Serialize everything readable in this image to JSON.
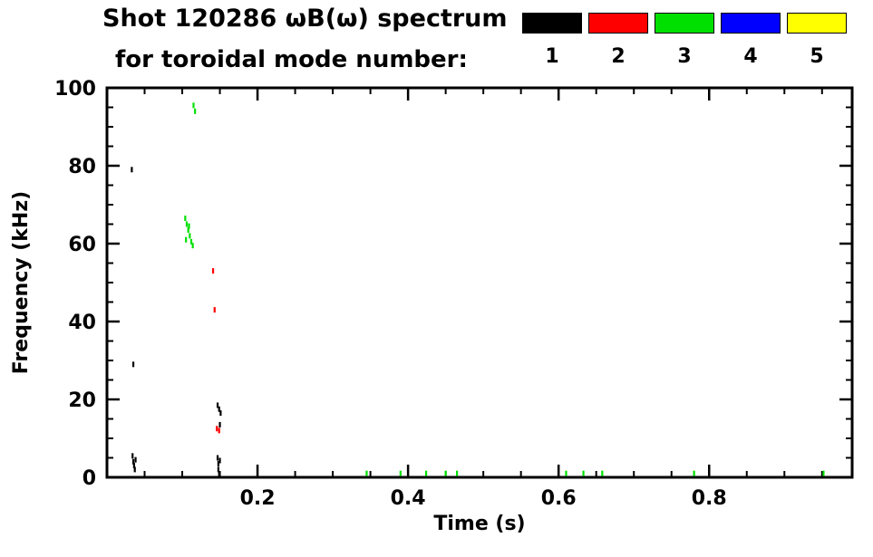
{
  "page": {
    "background": "#ffffff"
  },
  "chart_data": {
    "type": "scatter",
    "title": "Shot 120286 ωB(ω) spectrum",
    "subtitle": "for toroidal mode number:",
    "xlabel": "Time (s)",
    "ylabel": "Frequency (kHz)",
    "xlim": [
      0.0,
      0.99
    ],
    "ylim": [
      0,
      100
    ],
    "xticks": [
      0.2,
      0.4,
      0.6,
      0.8
    ],
    "xtick_labels": [
      "0.2",
      "0.4",
      "0.6",
      "0.8"
    ],
    "yticks": [
      0,
      20,
      40,
      60,
      80,
      100
    ],
    "ytick_labels": [
      "0",
      "20",
      "40",
      "60",
      "80",
      "100"
    ],
    "x_minor_step": 0.05,
    "y_minor_step": 5,
    "grid": false,
    "legend": {
      "position": "top-right",
      "items": [
        {
          "label": "1",
          "color": "#000000"
        },
        {
          "label": "2",
          "color": "#ff0000"
        },
        {
          "label": "3",
          "color": "#00e000"
        },
        {
          "label": "4",
          "color": "#0000ff"
        },
        {
          "label": "5",
          "color": "#ffff00"
        }
      ]
    },
    "series": [
      {
        "name": "toroidal mode n=1",
        "color": "#000000",
        "points": [
          [
            0.033,
            79
          ],
          [
            0.035,
            29
          ],
          [
            0.034,
            5.5
          ],
          [
            0.035,
            4
          ],
          [
            0.036,
            3
          ],
          [
            0.037,
            2
          ],
          [
            0.038,
            4.5
          ],
          [
            0.147,
            18.5
          ],
          [
            0.149,
            17.5
          ],
          [
            0.151,
            16.5
          ],
          [
            0.15,
            13.5
          ],
          [
            0.147,
            5
          ],
          [
            0.148,
            3.5
          ],
          [
            0.148,
            2
          ],
          [
            0.149,
            0.8
          ],
          [
            0.15,
            4.3
          ]
        ]
      },
      {
        "name": "toroidal mode n=2",
        "color": "#ff0000",
        "points": [
          [
            0.141,
            53
          ],
          [
            0.143,
            43
          ],
          [
            0.146,
            12.5
          ],
          [
            0.149,
            12
          ]
        ]
      },
      {
        "name": "toroidal mode n=3",
        "color": "#00e000",
        "points": [
          [
            0.115,
            95.5
          ],
          [
            0.117,
            94
          ],
          [
            0.104,
            66.5
          ],
          [
            0.106,
            65
          ],
          [
            0.108,
            63.5
          ],
          [
            0.109,
            64.5
          ],
          [
            0.105,
            61
          ],
          [
            0.11,
            62
          ],
          [
            0.112,
            60.5
          ],
          [
            0.114,
            59.5
          ],
          [
            0.345,
            1
          ],
          [
            0.39,
            1
          ],
          [
            0.424,
            1
          ],
          [
            0.45,
            1
          ],
          [
            0.465,
            1
          ],
          [
            0.61,
            1
          ],
          [
            0.633,
            1
          ],
          [
            0.658,
            1
          ],
          [
            0.78,
            1
          ],
          [
            0.952,
            1
          ]
        ]
      },
      {
        "name": "toroidal mode n=4",
        "color": "#0000ff",
        "points": []
      },
      {
        "name": "toroidal mode n=5",
        "color": "#ffff00",
        "points": []
      }
    ]
  }
}
